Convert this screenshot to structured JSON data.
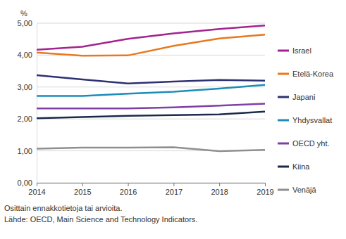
{
  "chart_data": {
    "type": "line",
    "y_label": "%",
    "notes": [
      "Osittain ennakkotietoja tai arvioita.",
      "Lähde: OECD, Main Science and Technology Indicators."
    ],
    "x": [
      2014,
      2015,
      2016,
      2017,
      2018,
      2019
    ],
    "xlim": [
      2014,
      2019
    ],
    "xticks": [
      2014,
      2015,
      2016,
      2017,
      2018,
      2019
    ],
    "ylim": [
      0,
      5
    ],
    "yticks": [
      {
        "value": 0,
        "label": "0,00"
      },
      {
        "value": 1,
        "label": "1,00"
      },
      {
        "value": 2,
        "label": "2,00"
      },
      {
        "value": 3,
        "label": "3,00"
      },
      {
        "value": 4,
        "label": "4,00"
      },
      {
        "value": 5,
        "label": "5,00"
      }
    ],
    "grid": true,
    "legend": "right",
    "series": [
      {
        "name": "Israel",
        "color": "#a3238e",
        "values": [
          4.17,
          4.26,
          4.51,
          4.68,
          4.82,
          4.93
        ]
      },
      {
        "name": "Etelä-Korea",
        "color": "#e8791e",
        "values": [
          4.08,
          3.98,
          3.99,
          4.29,
          4.52,
          4.64
        ]
      },
      {
        "name": "Japani",
        "color": "#2e3171",
        "values": [
          3.37,
          3.24,
          3.11,
          3.17,
          3.22,
          3.2
        ]
      },
      {
        "name": "Yhdysvallat",
        "color": "#1b8db8",
        "values": [
          2.72,
          2.72,
          2.79,
          2.85,
          2.95,
          3.07
        ]
      },
      {
        "name": "OECD yht.",
        "color": "#7e3fa6",
        "values": [
          2.33,
          2.33,
          2.33,
          2.36,
          2.42,
          2.48
        ]
      },
      {
        "name": "Kiina",
        "color": "#1c2a4a",
        "values": [
          2.02,
          2.06,
          2.1,
          2.12,
          2.14,
          2.23
        ]
      },
      {
        "name": "Venäjä",
        "color": "#8f8f8f",
        "values": [
          1.07,
          1.1,
          1.1,
          1.11,
          0.99,
          1.03
        ]
      }
    ]
  }
}
